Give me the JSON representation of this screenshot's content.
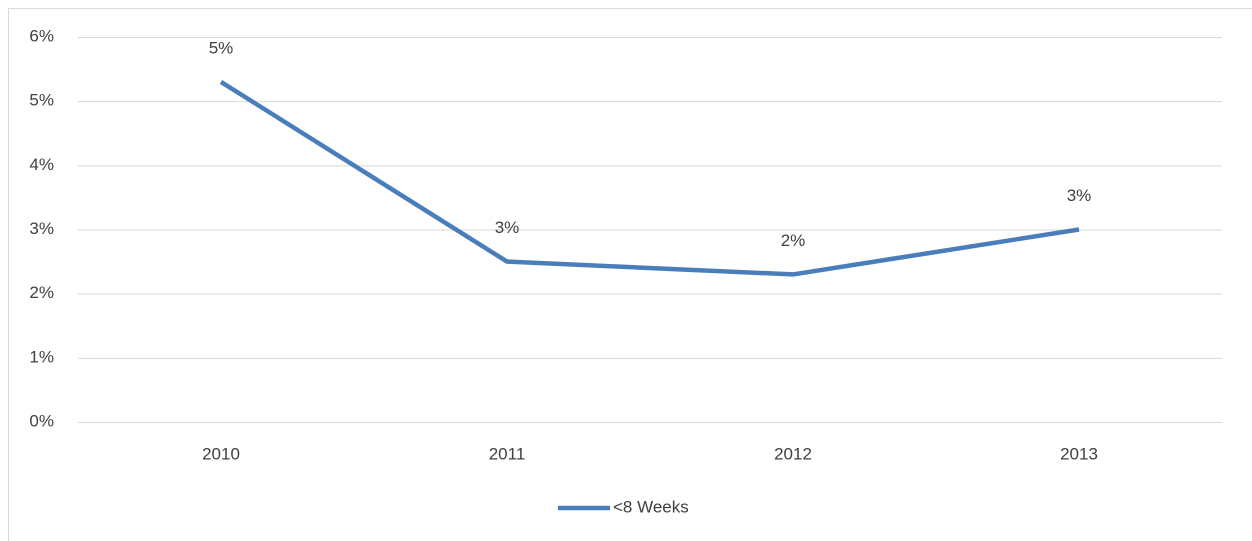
{
  "chart_data": {
    "type": "line",
    "categories": [
      "2010",
      "2011",
      "2012",
      "2013"
    ],
    "series": [
      {
        "name": "<8 Weeks",
        "color": "#4a7ebb",
        "values": [
          5.3,
          2.5,
          2.3,
          3.0
        ],
        "value_labels": [
          "5%",
          "3%",
          "2%",
          "3%"
        ]
      }
    ],
    "ylim": [
      0,
      6
    ],
    "yticks": [
      {
        "value": 0,
        "label": "0%"
      },
      {
        "value": 1,
        "label": "1%"
      },
      {
        "value": 2,
        "label": "2%"
      },
      {
        "value": 3,
        "label": "3%"
      },
      {
        "value": 4,
        "label": "4%"
      },
      {
        "value": 5,
        "label": "5%"
      },
      {
        "value": 6,
        "label": "6%"
      }
    ],
    "grid": true,
    "legend": "bottom"
  }
}
